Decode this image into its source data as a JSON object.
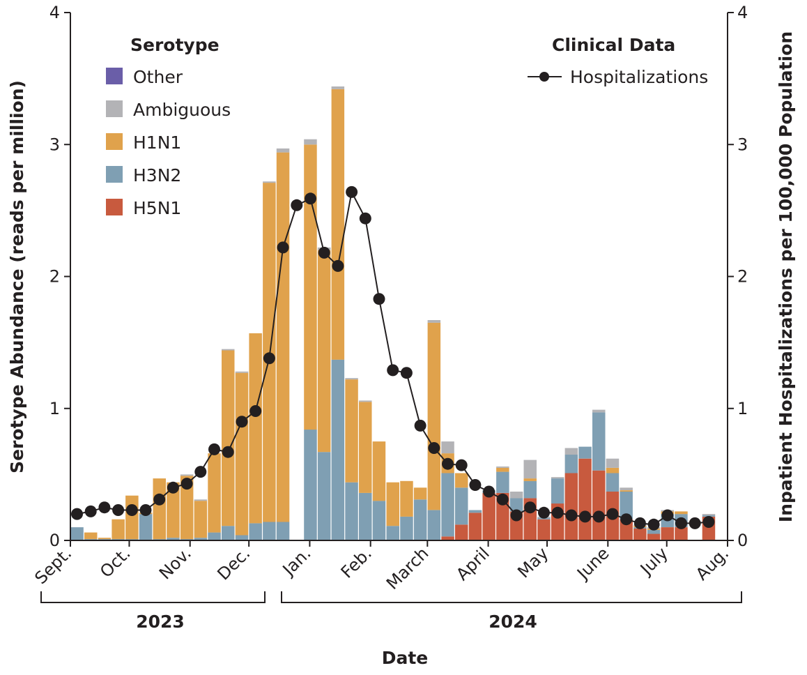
{
  "chart_data": {
    "type": "bar",
    "stacked": true,
    "xlabel": "Date",
    "ylabel": "Serotype Abundance (reads per million)",
    "y2label": "Inpatient Hospitalizations per 100,000 Population",
    "ylim": [
      0,
      4
    ],
    "y2lim": [
      0,
      4
    ],
    "yticks": [
      "0",
      "1",
      "2",
      "3",
      "4"
    ],
    "y2ticks": [
      "0",
      "1",
      "2",
      "3",
      "4"
    ],
    "xticks": [
      "Sept.",
      "Oct.",
      "Nov.",
      "Dec.",
      "Jan.",
      "Feb.",
      "March",
      "April",
      "May",
      "June",
      "July",
      "Aug."
    ],
    "years": [
      "2023",
      "2024"
    ],
    "legend": {
      "serotype_title": "Serotype",
      "serotype_items": [
        "Other",
        "Ambiguous",
        "H1N1",
        "H3N2",
        "H5N1"
      ],
      "clinical_title": "Clinical Data",
      "clinical_items": [
        "Hospitalizations"
      ]
    },
    "colors": {
      "Other": "#6a5ea8",
      "Ambiguous": "#b3b3b6",
      "H1N1": "#e0a24c",
      "H3N2": "#7f9fb3",
      "H5N1": "#c85a3e",
      "line": "#231f20"
    },
    "grid": false,
    "bar_weeks": [
      "2023-09-01",
      "2023-09-08",
      "2023-09-15",
      "2023-09-22",
      "2023-09-29",
      "2023-10-06",
      "2023-10-13",
      "2023-10-20",
      "2023-10-27",
      "2023-11-03",
      "2023-11-10",
      "2023-11-17",
      "2023-11-24",
      "2023-12-01",
      "2023-12-08",
      "2023-12-15",
      "2023-12-22",
      "2023-12-29",
      "2024-01-05",
      "2024-01-12",
      "2024-01-19",
      "2024-01-26",
      "2024-02-02",
      "2024-02-09",
      "2024-02-16",
      "2024-02-23",
      "2024-03-01",
      "2024-03-08",
      "2024-03-15",
      "2024-03-22",
      "2024-03-29",
      "2024-04-05",
      "2024-04-12",
      "2024-04-19",
      "2024-04-26",
      "2024-05-03",
      "2024-05-10",
      "2024-05-17",
      "2024-05-24",
      "2024-05-31",
      "2024-06-07",
      "2024-06-14",
      "2024-06-21",
      "2024-06-28",
      "2024-07-05",
      "2024-07-12",
      "2024-07-19"
    ],
    "series": [
      {
        "name": "H5N1",
        "values": [
          0,
          0,
          0,
          0,
          0,
          0,
          0,
          0,
          0,
          0,
          0,
          0,
          0,
          0,
          0,
          0,
          null,
          0,
          0,
          0,
          0,
          0,
          0,
          0,
          0,
          0,
          0,
          0.03,
          0.12,
          0.21,
          0.36,
          0.36,
          0.22,
          0.32,
          0.16,
          0.28,
          0.51,
          0.62,
          0.53,
          0.37,
          0.16,
          0.09,
          0.05,
          0.1,
          0.1,
          0,
          0.18
        ]
      },
      {
        "name": "H3N2",
        "values": [
          0.1,
          0.01,
          0.01,
          0.01,
          0.01,
          0.2,
          0.01,
          0.02,
          0.01,
          0.02,
          0.06,
          0.11,
          0.04,
          0.13,
          0.14,
          0.14,
          null,
          0.84,
          0.67,
          1.37,
          0.44,
          0.36,
          0.3,
          0.11,
          0.18,
          0.31,
          0.23,
          0.48,
          0.28,
          0.02,
          0.02,
          0.16,
          0.1,
          0.13,
          0.01,
          0.19,
          0.14,
          0.09,
          0.44,
          0.14,
          0.21,
          0.01,
          0.03,
          0.1,
          0.1,
          0,
          0.01
        ]
      },
      {
        "name": "H1N1",
        "values": [
          0,
          0.05,
          0.01,
          0.15,
          0.33,
          0.01,
          0.46,
          0.42,
          0.48,
          0.28,
          0.6,
          1.33,
          1.23,
          1.44,
          2.57,
          2.8,
          null,
          2.16,
          1.53,
          2.05,
          0.78,
          0.69,
          0.45,
          0.33,
          0.27,
          0.09,
          1.42,
          0.15,
          0.11,
          0,
          0,
          0.03,
          0,
          0.02,
          0,
          0,
          0,
          0,
          0,
          0.04,
          0.01,
          0.01,
          0.01,
          0.02,
          0.02,
          0,
          0
        ]
      },
      {
        "name": "Ambiguous",
        "values": [
          0,
          0,
          0,
          0,
          0,
          0,
          0,
          0,
          0.01,
          0.01,
          0,
          0.01,
          0.01,
          0,
          0.01,
          0.03,
          null,
          0.04,
          0.02,
          0.02,
          0.01,
          0.01,
          0,
          0,
          0,
          0,
          0.02,
          0.09,
          0,
          0,
          0,
          0.01,
          0.05,
          0.14,
          0.01,
          0.01,
          0.05,
          0,
          0.02,
          0.07,
          0.02,
          0.01,
          0.01,
          0.01,
          0,
          0,
          0.01
        ]
      },
      {
        "name": "Other",
        "values": [
          0,
          0,
          0,
          0,
          0,
          0,
          0,
          0,
          0,
          0,
          0,
          0,
          0,
          0,
          0,
          0,
          null,
          0,
          0,
          0,
          0,
          0,
          0,
          0,
          0,
          0,
          0,
          0,
          0,
          0,
          0,
          0,
          0,
          0,
          0,
          0,
          0,
          0,
          0,
          0,
          0,
          0,
          0,
          0,
          0,
          0,
          0
        ]
      }
    ],
    "hospitalizations": {
      "name": "Hospitalizations",
      "dates": [
        "2023-09-01",
        "2023-09-08",
        "2023-09-15",
        "2023-09-22",
        "2023-09-29",
        "2023-10-06",
        "2023-10-13",
        "2023-10-20",
        "2023-10-27",
        "2023-11-03",
        "2023-11-10",
        "2023-11-17",
        "2023-11-24",
        "2023-12-01",
        "2023-12-08",
        "2023-12-15",
        "2023-12-22",
        "2023-12-29",
        "2024-01-05",
        "2024-01-12",
        "2024-01-19",
        "2024-01-26",
        "2024-02-02",
        "2024-02-09",
        "2024-02-16",
        "2024-02-23",
        "2024-03-01",
        "2024-03-08",
        "2024-03-15",
        "2024-03-22",
        "2024-03-29",
        "2024-04-05",
        "2024-04-12",
        "2024-04-19",
        "2024-04-26",
        "2024-05-03",
        "2024-05-10",
        "2024-05-17",
        "2024-05-24",
        "2024-05-31",
        "2024-06-07",
        "2024-06-14",
        "2024-06-21",
        "2024-06-28",
        "2024-07-05",
        "2024-07-12",
        "2024-07-19"
      ],
      "values": [
        0.2,
        0.22,
        0.25,
        0.23,
        0.23,
        0.23,
        0.31,
        0.4,
        0.43,
        0.52,
        0.69,
        0.67,
        0.9,
        0.98,
        1.38,
        2.22,
        2.54,
        2.59,
        2.18,
        2.08,
        2.64,
        2.44,
        1.83,
        1.29,
        1.27,
        0.87,
        0.7,
        0.58,
        0.57,
        0.42,
        0.37,
        0.31,
        0.19,
        0.25,
        0.21,
        0.21,
        0.19,
        0.18,
        0.18,
        0.2,
        0.16,
        0.13,
        0.12,
        0.19,
        0.13,
        0.13,
        0.14
      ]
    }
  }
}
